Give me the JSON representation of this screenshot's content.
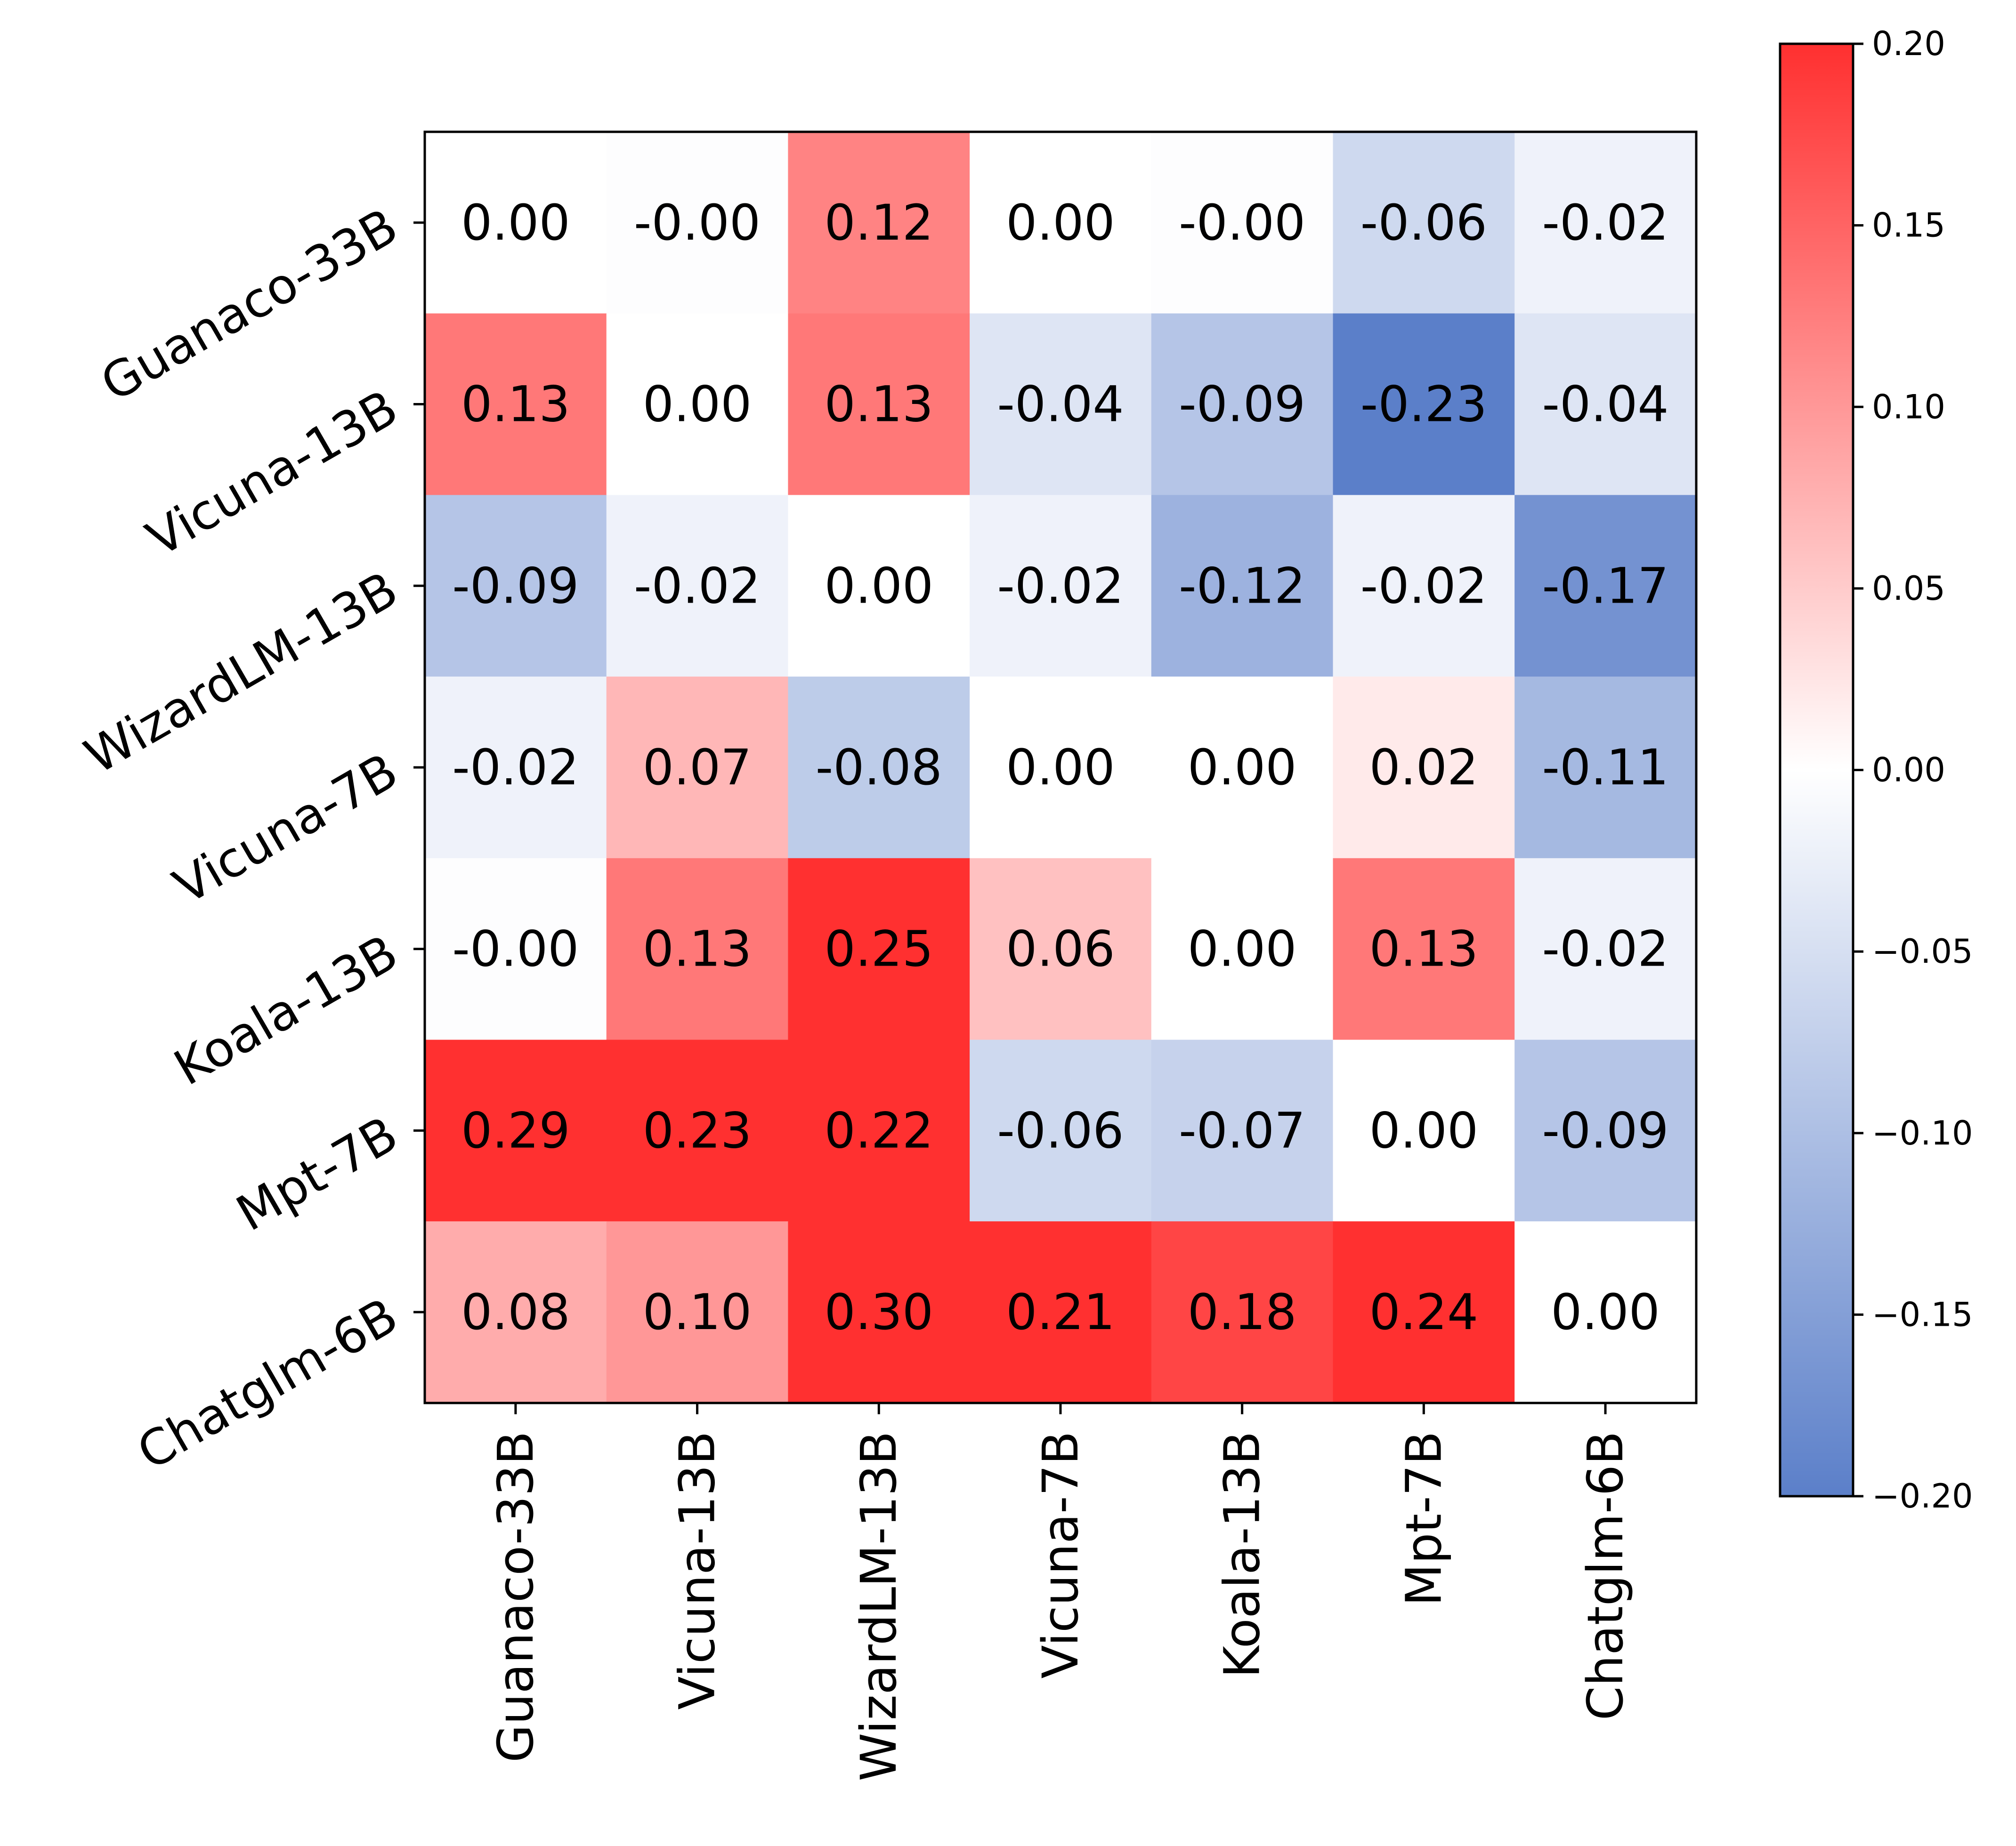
{
  "chart_data": {
    "type": "heatmap",
    "title": "",
    "xlabel": "",
    "ylabel": "",
    "rows": [
      "Guanaco-33B",
      "Vicuna-13B",
      "WizardLM-13B",
      "Vicuna-7B",
      "Koala-13B",
      "Mpt-7B",
      "Chatglm-6B"
    ],
    "columns": [
      "Guanaco-33B",
      "Vicuna-13B",
      "WizardLM-13B",
      "Vicuna-7B",
      "Koala-13B",
      "Mpt-7B",
      "Chatglm-6B"
    ],
    "values": [
      [
        0.0,
        -0.003,
        0.12,
        0.0,
        -0.003,
        -0.06,
        -0.02
      ],
      [
        0.13,
        0.0,
        0.13,
        -0.04,
        -0.09,
        -0.23,
        -0.04
      ],
      [
        -0.09,
        -0.02,
        0.0,
        -0.02,
        -0.12,
        -0.02,
        -0.17
      ],
      [
        -0.02,
        0.07,
        -0.08,
        0.0,
        0.0,
        0.02,
        -0.11
      ],
      [
        -0.003,
        0.13,
        0.25,
        0.06,
        0.0,
        0.13,
        -0.02
      ],
      [
        0.29,
        0.23,
        0.22,
        -0.06,
        -0.07,
        0.0,
        -0.09
      ],
      [
        0.08,
        0.1,
        0.3,
        0.21,
        0.18,
        0.24,
        0.0
      ]
    ],
    "annotations": [
      [
        "0.00",
        "-0.00",
        "0.12",
        "0.00",
        "-0.00",
        "-0.06",
        "-0.02"
      ],
      [
        "0.13",
        "0.00",
        "0.13",
        "-0.04",
        "-0.09",
        "-0.23",
        "-0.04"
      ],
      [
        "-0.09",
        "-0.02",
        "0.00",
        "-0.02",
        "-0.12",
        "-0.02",
        "-0.17"
      ],
      [
        "-0.02",
        "0.07",
        "-0.08",
        "0.00",
        "0.00",
        "0.02",
        "-0.11"
      ],
      [
        "-0.00",
        "0.13",
        "0.25",
        "0.06",
        "0.00",
        "0.13",
        "-0.02"
      ],
      [
        "0.29",
        "0.23",
        "0.22",
        "-0.06",
        "-0.07",
        "0.00",
        "-0.09"
      ],
      [
        "0.08",
        "0.10",
        "0.30",
        "0.21",
        "0.18",
        "0.24",
        "0.00"
      ]
    ],
    "colorbar": {
      "range": [
        -0.2,
        0.2
      ],
      "ticks": [
        0.2,
        0.15,
        0.1,
        0.05,
        0.0,
        -0.05,
        -0.1,
        -0.15,
        -0.2
      ],
      "tick_labels": [
        "0.20",
        "0.15",
        "0.10",
        "0.05",
        "0.00",
        "−0.05",
        "−0.10",
        "−0.15",
        "−0.20"
      ],
      "low_color": "#5b7fc9",
      "mid_color": "#ffffff",
      "high_color": "#ff3030"
    }
  }
}
